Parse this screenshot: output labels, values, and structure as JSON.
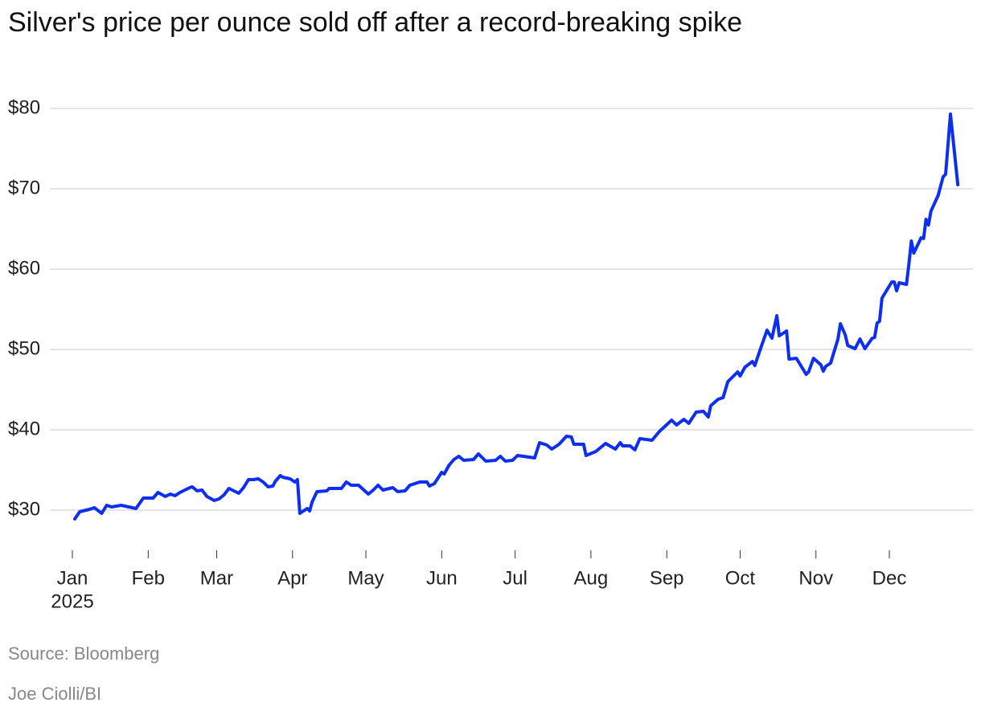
{
  "chart_data": {
    "type": "line",
    "title": "Silver's price per ounce sold off after a record-breaking spike",
    "source": "Source: Bloomberg",
    "credit": "Joe Ciolli/BI",
    "year_label": "2025",
    "grid": true,
    "xlim": [
      0,
      365
    ],
    "xticks": [
      {
        "value": 0,
        "label": "Jan"
      },
      {
        "value": 31,
        "label": "Feb"
      },
      {
        "value": 59,
        "label": "Mar"
      },
      {
        "value": 90,
        "label": "Apr"
      },
      {
        "value": 120,
        "label": "May"
      },
      {
        "value": 151,
        "label": "Jun"
      },
      {
        "value": 181,
        "label": "Jul"
      },
      {
        "value": 212,
        "label": "Aug"
      },
      {
        "value": 243,
        "label": "Sep"
      },
      {
        "value": 273,
        "label": "Oct"
      },
      {
        "value": 304,
        "label": "Nov"
      },
      {
        "value": 334,
        "label": "Dec"
      }
    ],
    "ylim": [
      25,
      82
    ],
    "yticks": [
      {
        "value": 30,
        "label": "$30"
      },
      {
        "value": 40,
        "label": "$40"
      },
      {
        "value": 50,
        "label": "$50"
      },
      {
        "value": 60,
        "label": "$60"
      },
      {
        "value": 70,
        "label": "$70"
      },
      {
        "value": 80,
        "label": "$80"
      }
    ],
    "x": [
      1,
      3,
      7,
      9,
      12,
      14,
      16,
      20,
      23,
      26,
      29,
      33,
      35,
      38,
      40,
      42,
      44,
      48,
      49,
      51,
      53,
      55,
      58,
      60,
      62,
      64,
      68,
      70,
      72,
      74,
      76,
      78,
      80,
      82,
      83,
      85,
      86,
      89,
      91,
      92,
      93,
      96,
      97,
      98,
      100,
      104,
      105,
      110,
      112,
      114,
      117,
      121,
      123,
      125,
      127,
      131,
      133,
      136,
      138,
      142,
      145,
      146,
      148,
      151,
      152,
      154,
      156,
      158,
      160,
      164,
      166,
      169,
      173,
      175,
      177,
      180,
      182,
      189,
      191,
      194,
      196,
      199,
      202,
      204,
      205,
      209,
      210,
      214,
      218,
      222,
      224,
      225,
      228,
      230,
      232,
      237,
      240,
      245,
      247,
      250,
      252,
      255,
      258,
      260,
      261,
      264,
      266,
      268,
      272,
      273,
      275,
      278,
      279,
      281,
      284,
      286,
      288,
      289,
      292,
      293,
      296,
      300,
      301,
      303,
      306,
      307,
      308,
      310,
      313,
      314,
      316,
      317,
      320,
      322,
      324,
      327,
      328,
      329,
      330,
      331,
      335,
      336,
      337,
      338,
      341,
      342,
      343,
      344,
      347,
      348,
      349,
      350,
      351,
      354,
      356,
      357,
      359,
      362
    ],
    "series": [
      {
        "name": "Silver",
        "color": "#0f2ff0",
        "values": [
          28.9,
          29.8,
          30.1,
          30.3,
          29.6,
          30.6,
          30.4,
          30.6,
          30.4,
          30.2,
          31.5,
          31.5,
          32.2,
          31.7,
          32.0,
          31.8,
          32.2,
          32.8,
          32.9,
          32.4,
          32.5,
          31.7,
          31.2,
          31.4,
          31.9,
          32.7,
          32.1,
          32.8,
          33.8,
          33.8,
          33.9,
          33.5,
          32.9,
          33.0,
          33.6,
          34.3,
          34.1,
          33.9,
          33.5,
          33.8,
          29.6,
          30.2,
          29.9,
          31.0,
          32.3,
          32.4,
          32.7,
          32.7,
          33.5,
          33.1,
          33.1,
          32.0,
          32.5,
          33.1,
          32.5,
          32.8,
          32.3,
          32.4,
          33.1,
          33.5,
          33.5,
          33.0,
          33.3,
          34.7,
          34.5,
          35.6,
          36.3,
          36.7,
          36.2,
          36.3,
          37.0,
          36.1,
          36.2,
          36.7,
          36.1,
          36.2,
          36.8,
          36.5,
          38.4,
          38.1,
          37.6,
          38.2,
          39.2,
          39.1,
          38.2,
          38.2,
          36.8,
          37.3,
          38.3,
          37.6,
          38.4,
          38.0,
          38.0,
          37.5,
          38.9,
          38.7,
          39.8,
          41.2,
          40.6,
          41.3,
          40.8,
          42.2,
          42.3,
          41.6,
          43.0,
          43.8,
          44.0,
          46.0,
          47.2,
          46.7,
          47.8,
          48.5,
          48.0,
          49.8,
          52.4,
          51.4,
          54.2,
          51.7,
          52.3,
          48.8,
          48.9,
          46.9,
          47.2,
          48.9,
          48.1,
          47.3,
          47.9,
          48.3,
          51.3,
          53.2,
          51.8,
          50.5,
          50.1,
          51.3,
          50.1,
          51.4,
          51.5,
          53.3,
          53.5,
          56.4,
          58.4,
          58.4,
          57.3,
          58.3,
          58.1,
          60.6,
          63.5,
          62.0,
          63.9,
          63.8,
          66.2,
          65.5,
          67.2,
          69.2,
          71.5,
          71.8,
          79.3,
          70.5
        ]
      }
    ]
  }
}
